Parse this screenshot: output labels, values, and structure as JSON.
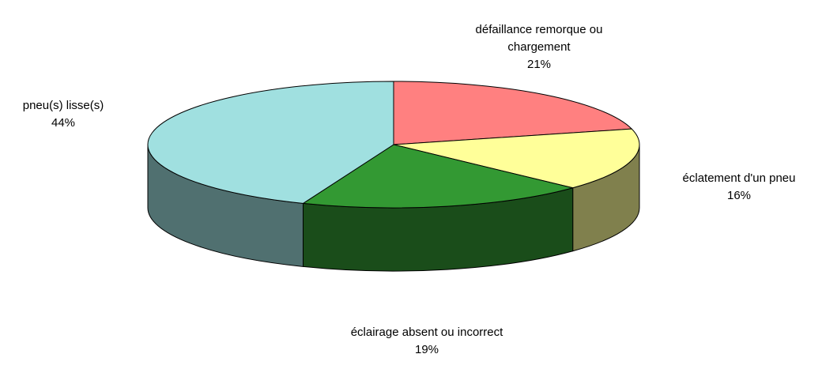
{
  "chart_data": {
    "type": "pie",
    "categories": [
      "défaillance remorque ou chargement",
      "éclatement d'un pneu",
      "éclairage absent ou incorrect",
      "pneu(s) lisse(s)"
    ],
    "values": [
      21,
      16,
      19,
      44
    ],
    "value_labels": [
      "21%",
      "16%",
      "19%",
      "44%"
    ],
    "colors": [
      "#ff8080",
      "#ffff99",
      "#339933",
      "#a0e0e0"
    ]
  }
}
